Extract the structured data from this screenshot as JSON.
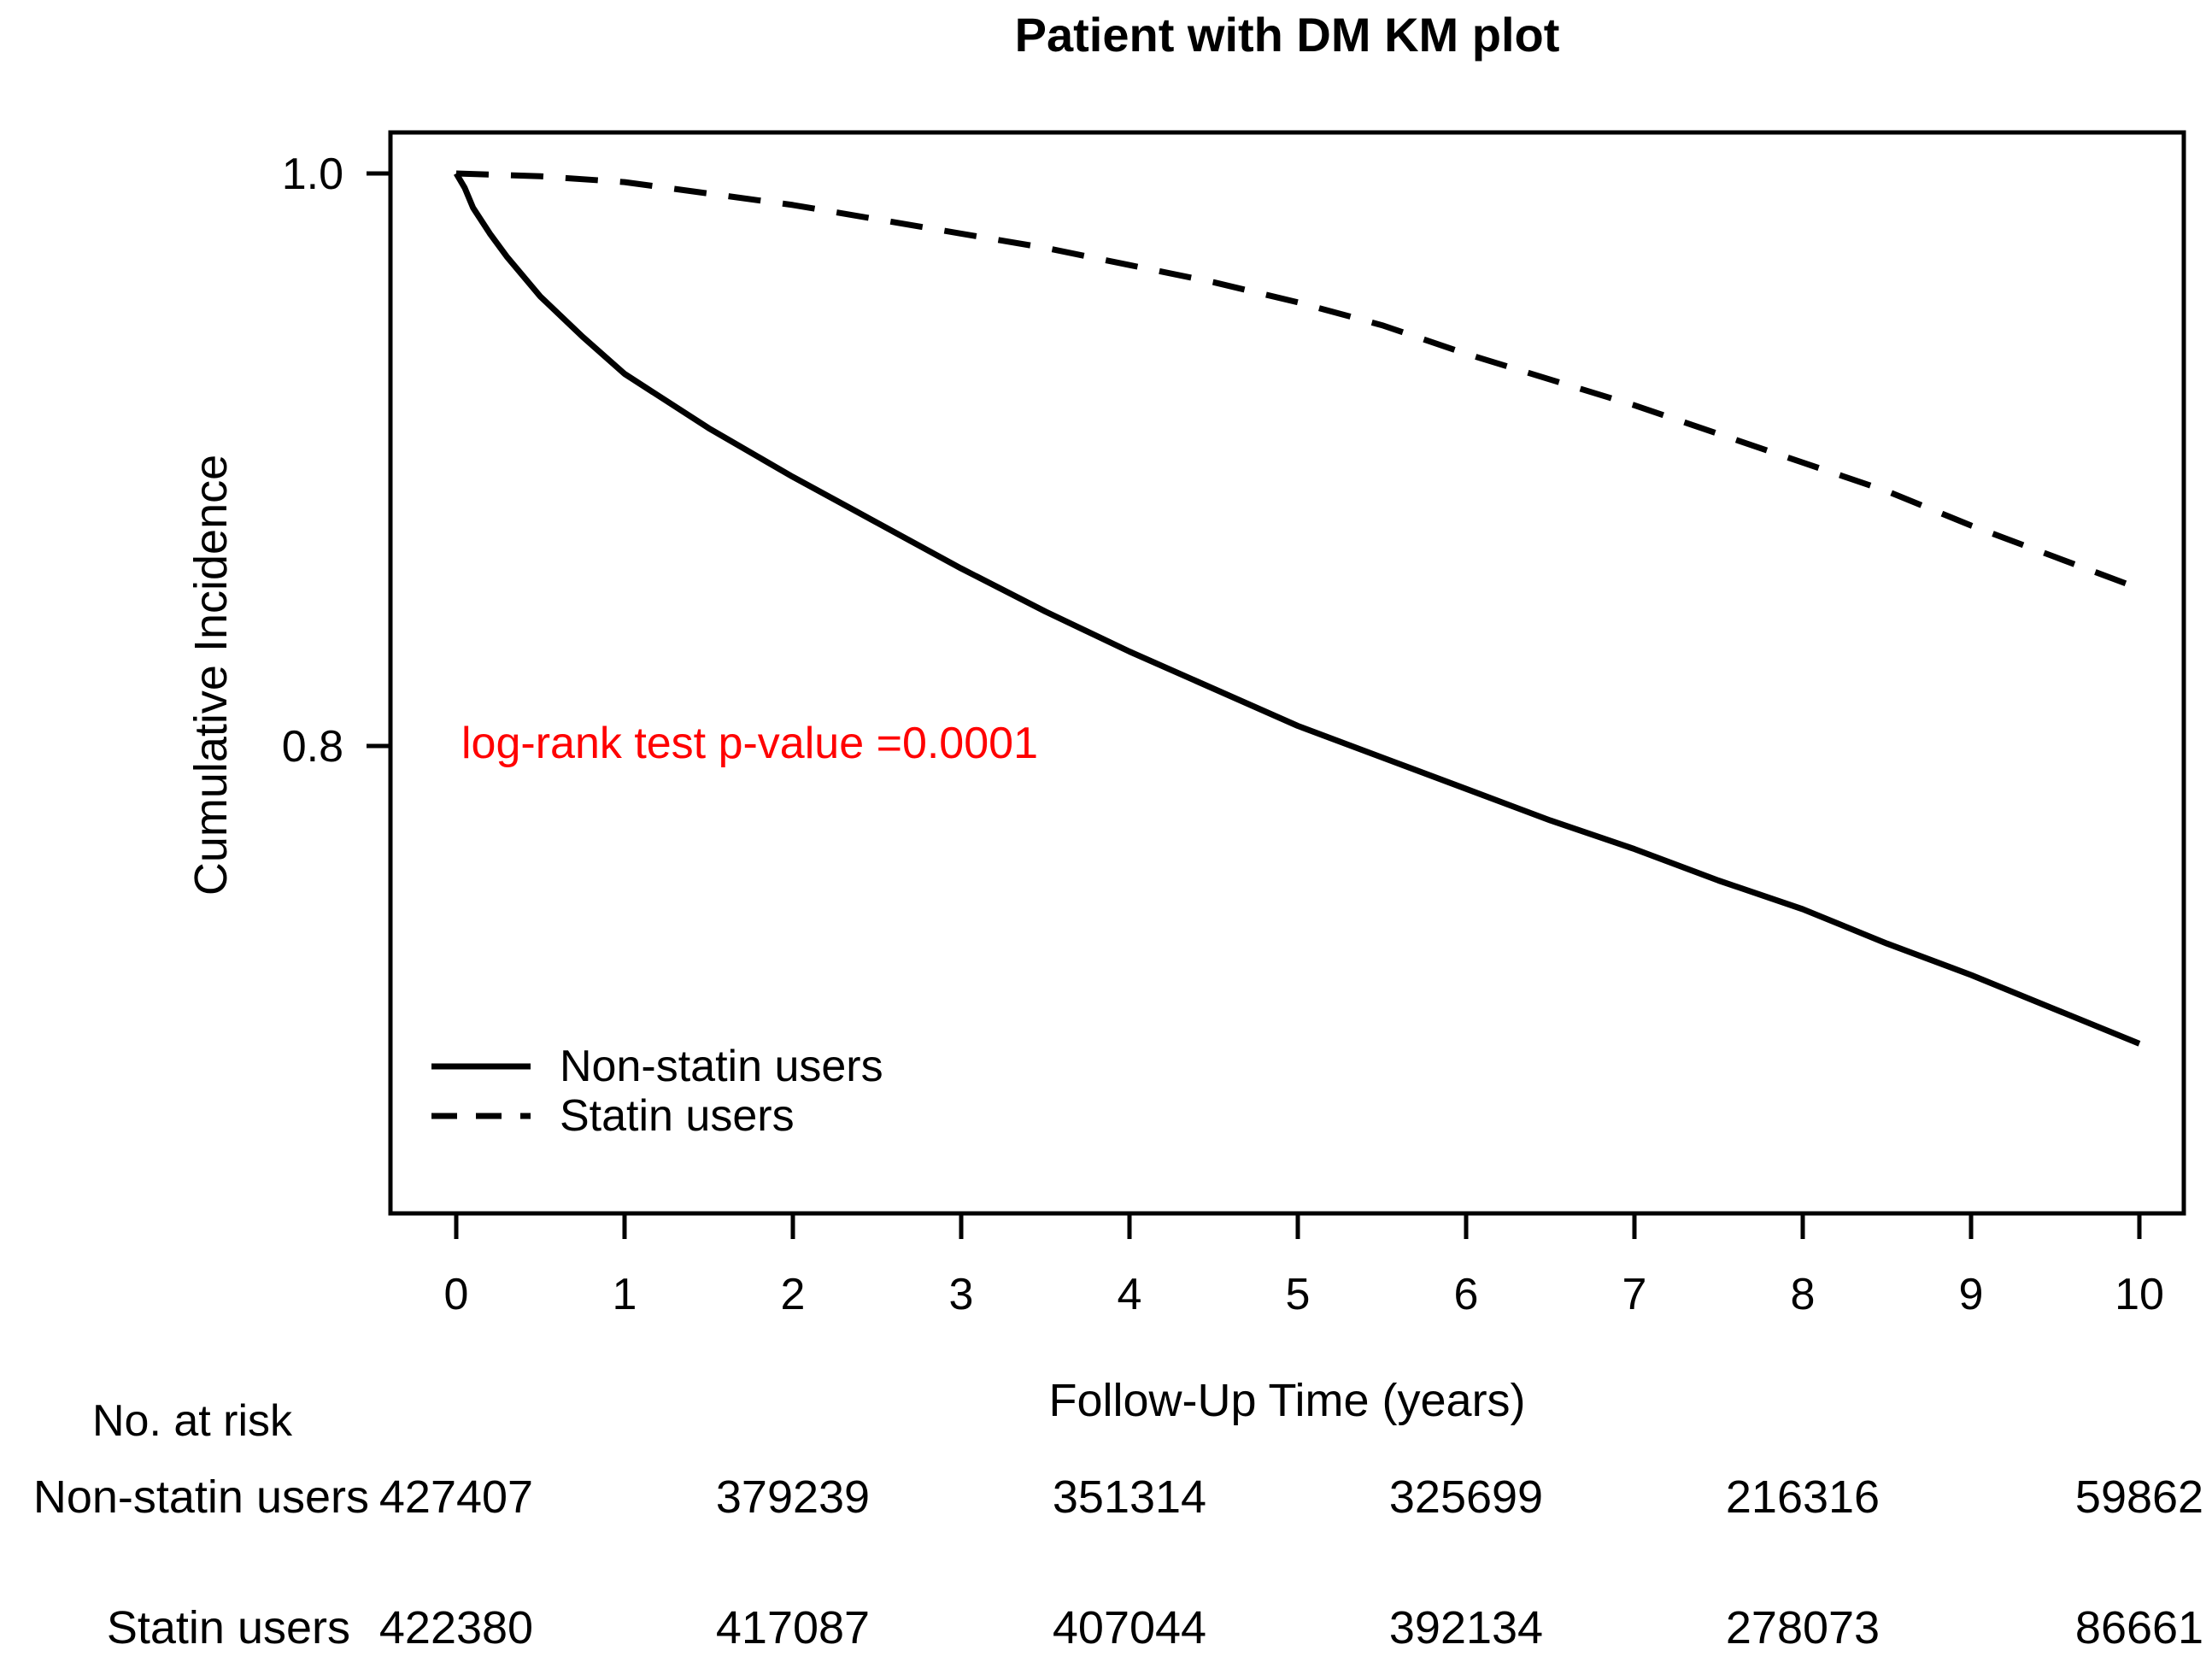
{
  "page": {
    "background": "#ffffff"
  },
  "chart_data": {
    "type": "line",
    "title": "Patient with DM KM plot",
    "xlabel": "Follow-Up Time (years)",
    "ylabel": "Cumulative Incidence",
    "xlim": [
      -0.4,
      10.4
    ],
    "ylim": [
      0.637,
      1.014
    ],
    "xticks": [
      0,
      1,
      2,
      3,
      4,
      5,
      6,
      7,
      8,
      9,
      10
    ],
    "yticks": [
      1.0,
      0.8
    ],
    "ytick_labels": [
      "1.0",
      "0.8"
    ],
    "grid": false,
    "legend_position": "inside-bottom-left",
    "line_color": "#000000",
    "annotation": {
      "text": "log-rank test p-value =0.0001",
      "color": "#ff0000",
      "x": 1.05,
      "y": 0.8
    },
    "series": [
      {
        "name": "Non-statin users",
        "style": "solid",
        "x": [
          0,
          0.05,
          0.1,
          0.2,
          0.3,
          0.5,
          0.75,
          1,
          1.5,
          2,
          2.5,
          3,
          3.5,
          4,
          4.5,
          5,
          5.5,
          6,
          6.5,
          7,
          7.5,
          8,
          8.5,
          9,
          9.5,
          10
        ],
        "y": [
          1.0,
          0.995,
          0.988,
          0.979,
          0.971,
          0.957,
          0.943,
          0.93,
          0.911,
          0.894,
          0.878,
          0.862,
          0.847,
          0.833,
          0.82,
          0.807,
          0.796,
          0.785,
          0.774,
          0.764,
          0.753,
          0.743,
          0.731,
          0.72,
          0.708,
          0.696
        ]
      },
      {
        "name": "Statin users",
        "style": "dashed",
        "x": [
          0,
          0.5,
          1,
          1.5,
          2,
          2.5,
          3,
          3.5,
          4,
          4.5,
          5,
          5.5,
          6,
          6.5,
          7,
          7.5,
          8,
          8.5,
          9,
          9.5,
          10
        ],
        "y": [
          1.0,
          0.999,
          0.997,
          0.993,
          0.989,
          0.984,
          0.979,
          0.974,
          0.968,
          0.962,
          0.955,
          0.947,
          0.937,
          0.928,
          0.919,
          0.909,
          0.899,
          0.889,
          0.877,
          0.866,
          0.855
        ]
      }
    ]
  },
  "risk_table": {
    "heading": "No. at risk",
    "times": [
      0,
      2,
      4,
      6,
      8,
      10
    ],
    "rows": [
      {
        "label": "Non-statin users",
        "values": [
          "427407",
          "379239",
          "351314",
          "325699",
          "216316",
          "59862"
        ]
      },
      {
        "label": "Statin users",
        "values": [
          "422380",
          "417087",
          "407044",
          "392134",
          "278073",
          "86661"
        ]
      }
    ]
  }
}
